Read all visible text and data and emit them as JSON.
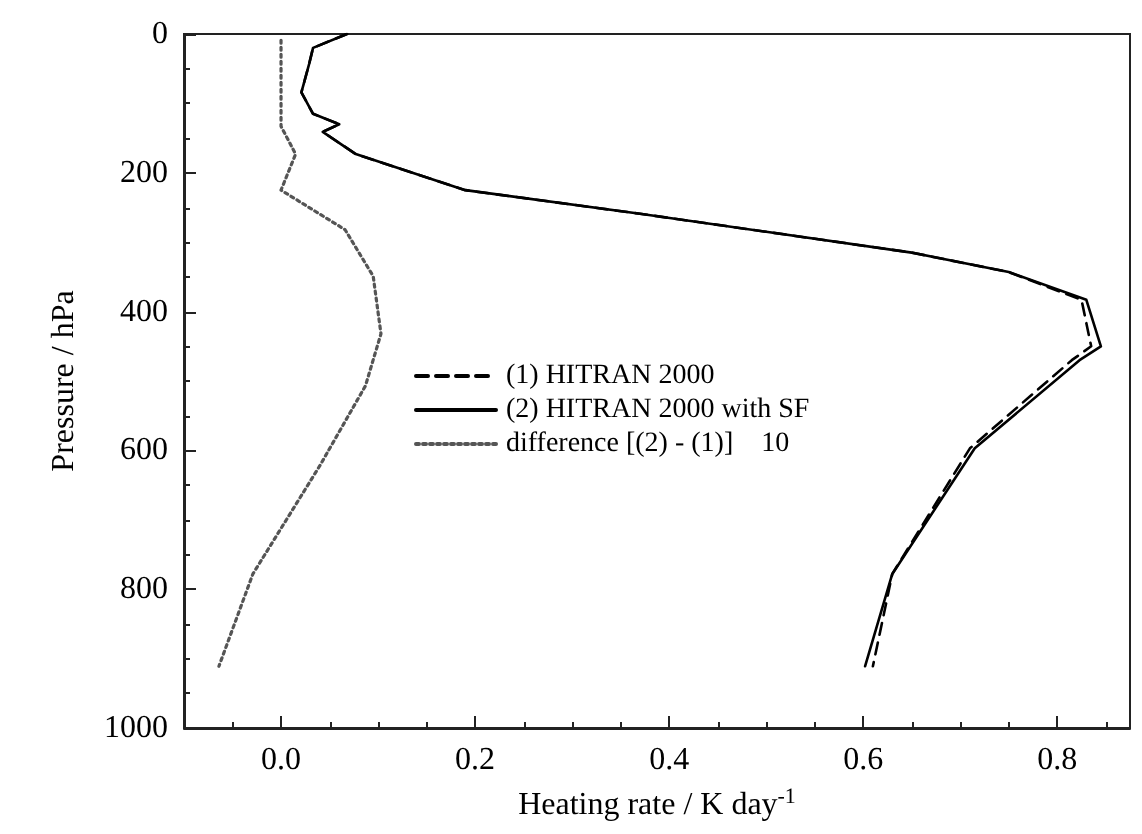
{
  "chart_data": {
    "type": "line",
    "xlabel": "Heating rate / K day$^{-1}$",
    "ylabel": "Pressure / hPa",
    "xlim": [
      -0.1,
      0.875
    ],
    "xticks": [
      {
        "value": 0,
        "label": "0.0"
      },
      0.2,
      0.4,
      0.6,
      0.8
    ],
    "ylim": [
      1000,
      0
    ],
    "yticks": [
      0,
      200,
      400,
      600,
      800,
      1000
    ],
    "grid": false,
    "legend": "center",
    "marker": "none",
    "series": [
      {
        "name": "(1) HITRAN 2000",
        "color": "#000000",
        "line_style": "dashed",
        "x": [
          0.068,
          0.033,
          0.029,
          0.021,
          0.033,
          0.06,
          0.043,
          0.077,
          0.19,
          0.37,
          0.5,
          0.65,
          0.75,
          0.825,
          0.835,
          0.815,
          0.71,
          0.63,
          0.61
        ],
        "values": [
          0,
          20,
          43,
          84,
          115,
          130,
          141,
          173,
          225,
          259,
          285,
          315,
          343,
          383,
          450,
          470,
          597,
          778,
          911
        ]
      },
      {
        "name": "(2) HITRAN 2000 with SF",
        "color": "#000000",
        "line_style": "solid",
        "x": [
          0.068,
          0.033,
          0.029,
          0.021,
          0.033,
          0.06,
          0.043,
          0.077,
          0.19,
          0.37,
          0.5,
          0.65,
          0.75,
          0.83,
          0.845,
          0.823,
          0.715,
          0.63,
          0.602
        ],
        "values": [
          0,
          20,
          43,
          84,
          115,
          130,
          141,
          173,
          225,
          259,
          285,
          315,
          343,
          383,
          450,
          470,
          597,
          778,
          911
        ]
      },
      {
        "name": "difference [(2) - (1)]    10",
        "color": "#555555",
        "line_style": "dotted",
        "x": [
          0.0,
          0.0,
          0.015,
          0.0,
          0.066,
          0.095,
          0.103,
          0.087,
          0.04,
          -0.029,
          -0.064
        ],
        "values": [
          9,
          133,
          173,
          225,
          282,
          349,
          432,
          507,
          622,
          778,
          911
        ]
      }
    ]
  }
}
